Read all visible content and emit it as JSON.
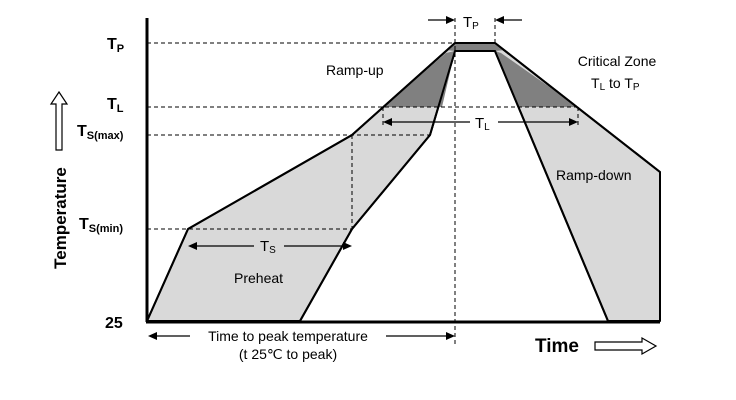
{
  "diagram": {
    "y_label": "Temperature",
    "x_label": "Time",
    "levels": {
      "tp": {
        "main": "T",
        "sub": "P"
      },
      "tl": {
        "main": "T",
        "sub": "L"
      },
      "ts_max": {
        "main": "T",
        "sub": "S(max)"
      },
      "ts_min": {
        "main": "T",
        "sub": "S(min)"
      },
      "base": "25"
    },
    "spans": {
      "tp": {
        "main": "T",
        "sub": "P"
      },
      "tl": {
        "main": "T",
        "sub": "L"
      },
      "ts": {
        "main": "T",
        "sub": "S"
      }
    },
    "regions": {
      "ramp_up": "Ramp-up",
      "ramp_down": "Ramp-down",
      "preheat": "Preheat",
      "critical_zone_line1": "Critical Zone",
      "critical_zone_line2": {
        "t1": "T",
        "s1": "L",
        "mid": " to ",
        "t2": "T",
        "s2": "P"
      }
    },
    "time_to_peak": {
      "line1": "Time to peak temperature",
      "line2": "(t 25℃ to peak)"
    },
    "colors": {
      "light_fill": "#d9d9d9",
      "dark_fill": "#808080",
      "stroke": "#000000"
    }
  }
}
